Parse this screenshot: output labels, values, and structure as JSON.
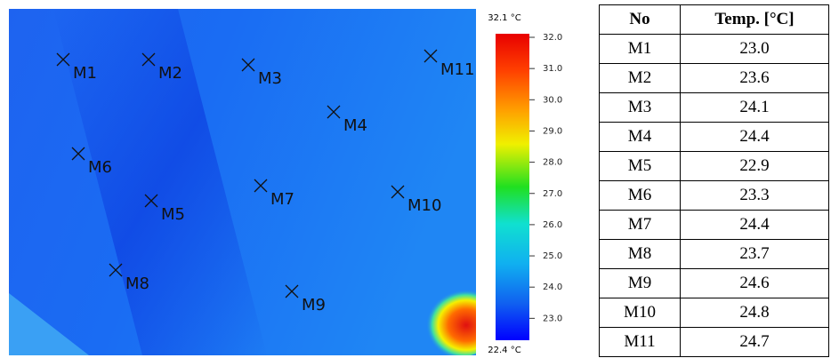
{
  "thermal_image": {
    "markers": [
      "M1",
      "M2",
      "M3",
      "M4",
      "M5",
      "M6",
      "M7",
      "M8",
      "M9",
      "M10",
      "M11"
    ],
    "colorbar": {
      "max_label": "32.1 °C",
      "min_label": "22.4 °C",
      "ticks": [
        "32.0",
        "31.0",
        "30.0",
        "29.0",
        "28.0",
        "27.0",
        "26.0",
        "25.0",
        "24.0",
        "23.0"
      ]
    }
  },
  "table": {
    "header": [
      "No",
      "Temp. [°C]"
    ],
    "rows": [
      [
        "M1",
        "23.0"
      ],
      [
        "M2",
        "23.6"
      ],
      [
        "M3",
        "24.1"
      ],
      [
        "M4",
        "24.4"
      ],
      [
        "M5",
        "22.9"
      ],
      [
        "M6",
        "23.3"
      ],
      [
        "M7",
        "24.4"
      ],
      [
        "M8",
        "23.7"
      ],
      [
        "M9",
        "24.6"
      ],
      [
        "M10",
        "24.8"
      ],
      [
        "M11",
        "24.7"
      ]
    ]
  }
}
